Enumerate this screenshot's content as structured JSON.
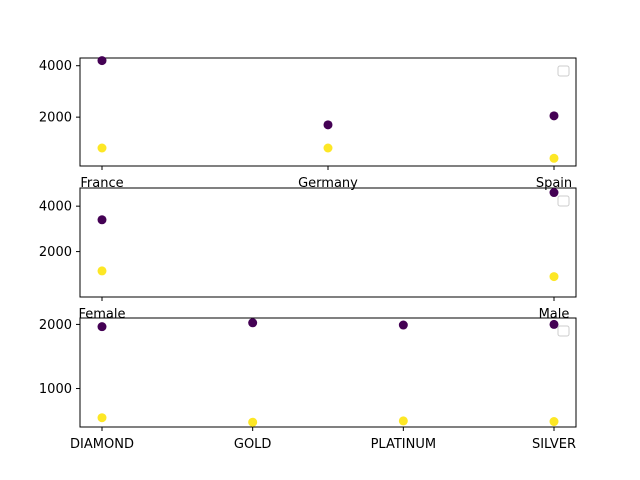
{
  "chart_data": [
    {
      "type": "scatter",
      "categories": [
        "France",
        "Germany",
        "Spain"
      ],
      "yticks": [
        2000,
        4000
      ],
      "ylim": [
        100,
        4300
      ],
      "grid": false,
      "legend": "top-right",
      "series": [
        {
          "color": "#440154",
          "values": [
            4200,
            1700,
            2050
          ]
        },
        {
          "color": "#fde725",
          "values": [
            800,
            800,
            400
          ]
        }
      ]
    },
    {
      "type": "scatter",
      "categories": [
        "Female",
        "Male"
      ],
      "yticks": [
        2000,
        4000
      ],
      "ylim": [
        0,
        4800
      ],
      "grid": false,
      "legend": "top-right",
      "series": [
        {
          "color": "#440154",
          "values": [
            3400,
            4600
          ]
        },
        {
          "color": "#fde725",
          "values": [
            1150,
            900
          ]
        }
      ]
    },
    {
      "type": "scatter",
      "categories": [
        "DIAMOND",
        "GOLD",
        "PLATINUM",
        "SILVER"
      ],
      "yticks": [
        1000,
        2000
      ],
      "ylim": [
        400,
        2100
      ],
      "grid": false,
      "legend": "top-right",
      "series": [
        {
          "color": "#440154",
          "values": [
            1965,
            2025,
            1990,
            2000
          ]
        },
        {
          "color": "#fde725",
          "values": [
            545,
            475,
            495,
            485
          ]
        }
      ]
    }
  ]
}
